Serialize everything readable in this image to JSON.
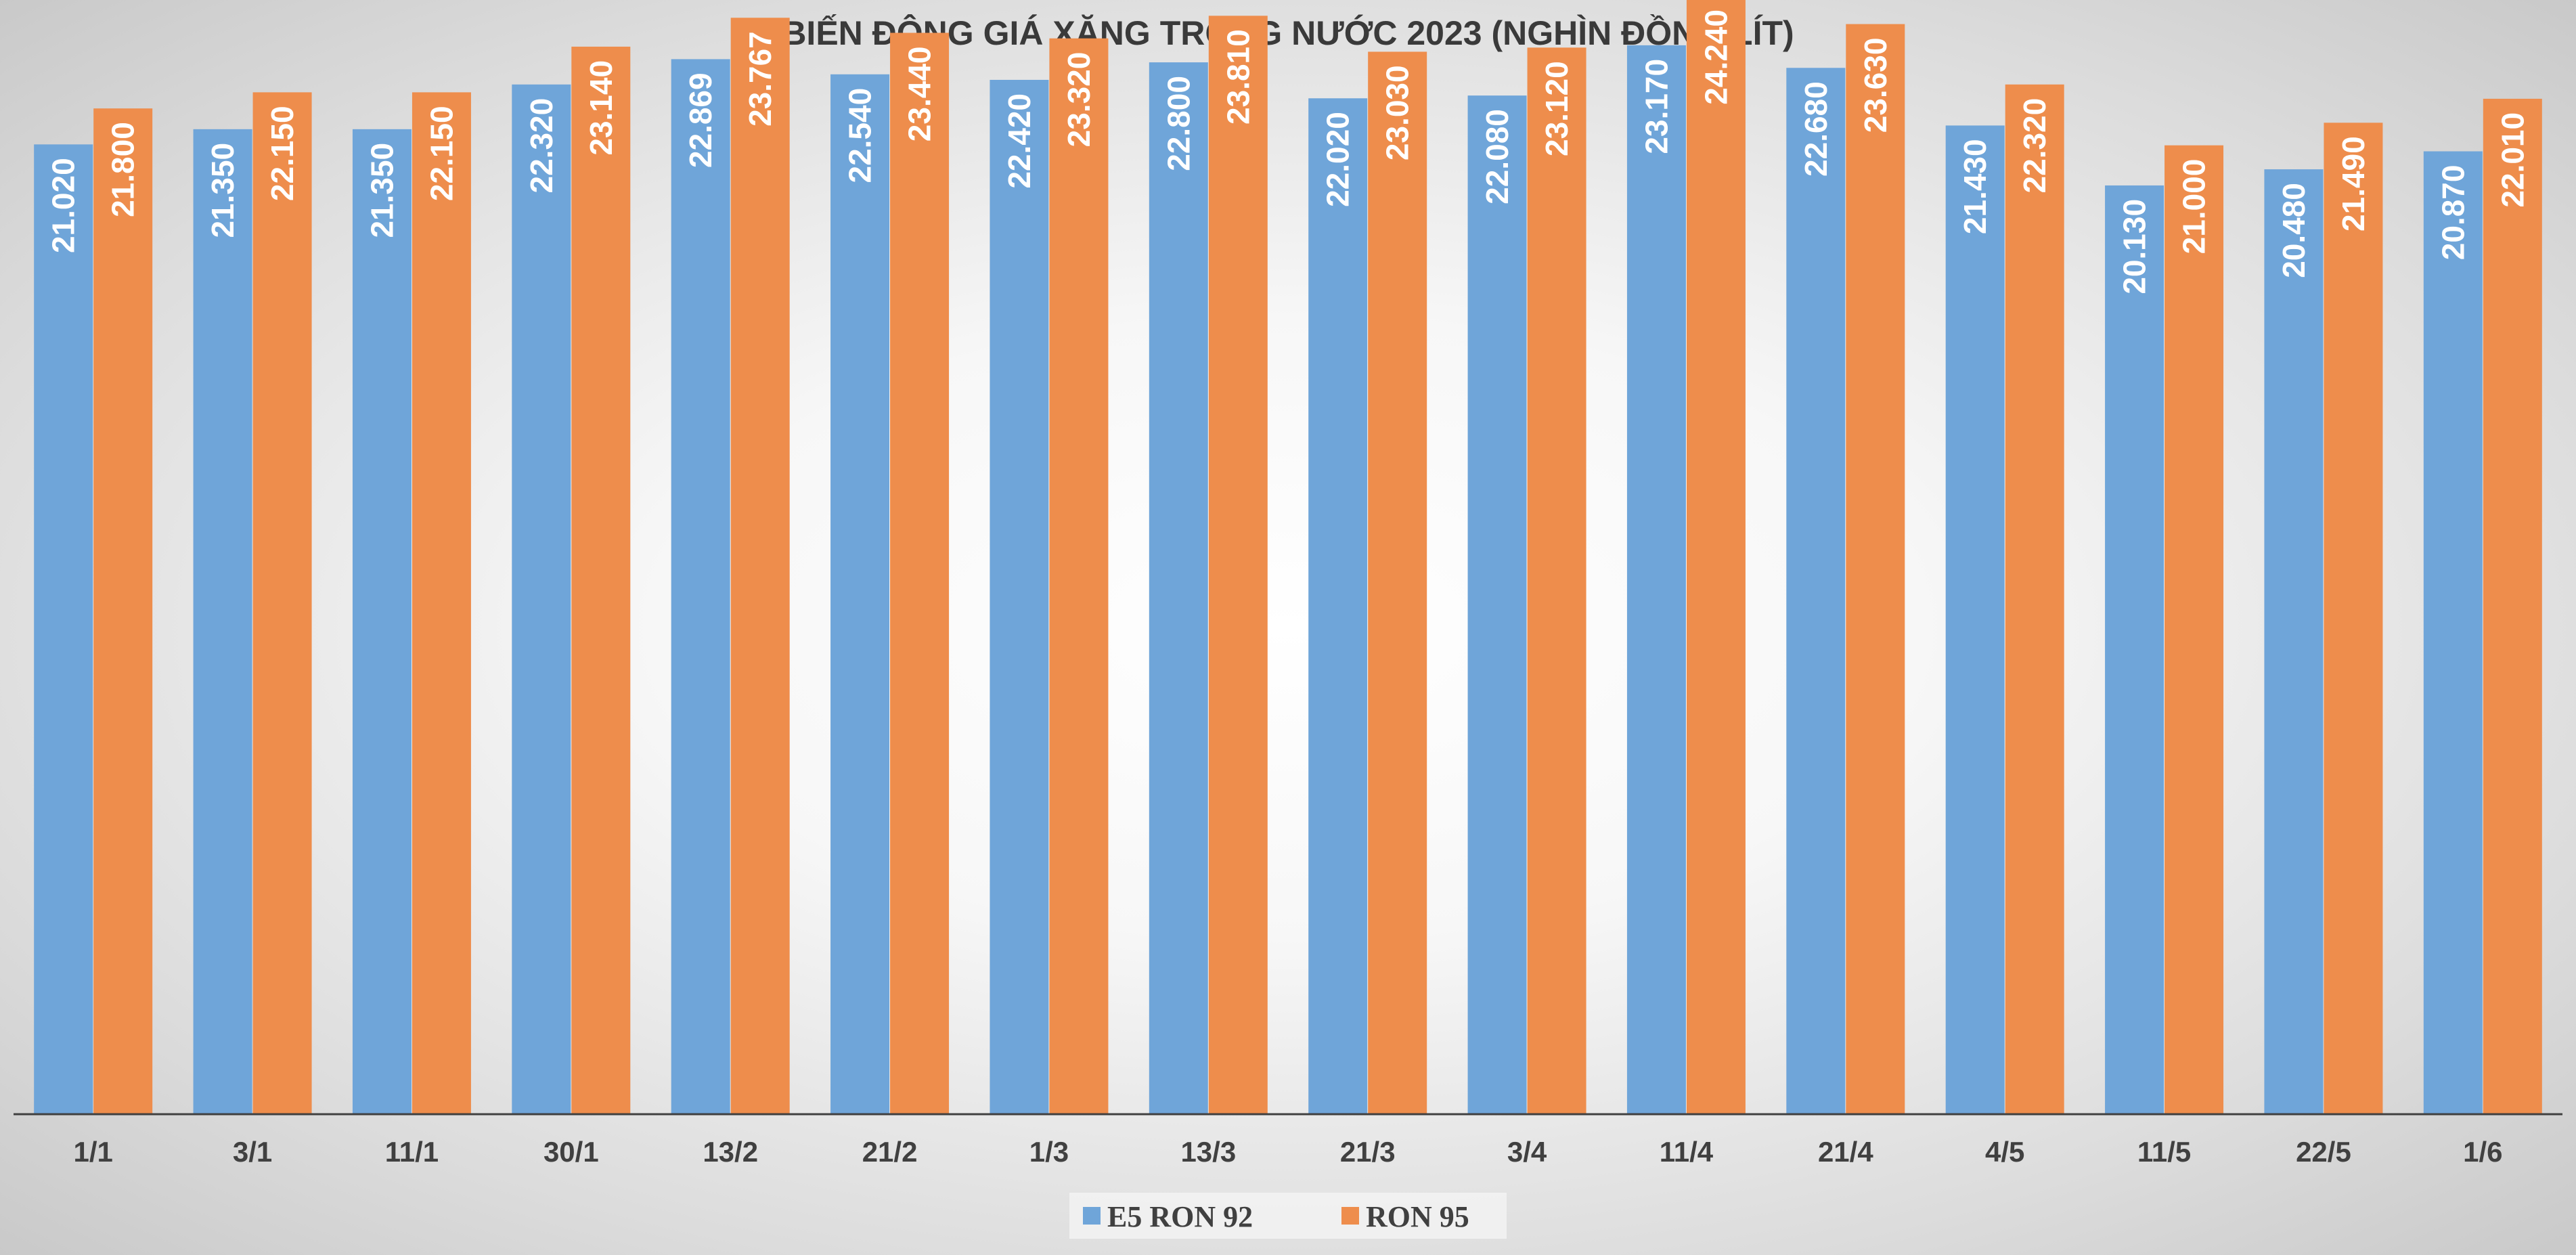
{
  "chart_data": {
    "type": "bar",
    "title": "BIẾN ĐỘNG GIÁ XĂNG TRONG NƯỚC 2023 (NGHÌN ĐỒNG/LÍT)",
    "xlabel": "",
    "ylabel": "",
    "categories": [
      "1/1",
      "3/1",
      "11/1",
      "30/1",
      "13/2",
      "21/2",
      "1/3",
      "13/3",
      "21/3",
      "3/4",
      "11/4",
      "21/4",
      "4/5",
      "11/5",
      "22/5",
      "1/6"
    ],
    "series": [
      {
        "name": "E5 RON 92",
        "color": "#6fa5d9",
        "values": [
          21.02,
          21.35,
          21.35,
          22.32,
          22.869,
          22.54,
          22.42,
          22.8,
          22.02,
          22.08,
          23.17,
          22.68,
          21.43,
          20.13,
          20.48,
          20.87
        ],
        "labels": [
          "21.020",
          "21.350",
          "21.350",
          "22.320",
          "22.869",
          "22.540",
          "22.420",
          "22.800",
          "22.020",
          "22.080",
          "23.170",
          "22.680",
          "21.430",
          "20.130",
          "20.480",
          "20.870"
        ]
      },
      {
        "name": "RON 95",
        "color": "#ee8d4c",
        "values": [
          21.8,
          22.15,
          22.15,
          23.14,
          23.767,
          23.44,
          23.32,
          23.81,
          23.03,
          23.12,
          24.24,
          23.63,
          22.32,
          21.0,
          21.49,
          22.01
        ],
        "labels": [
          "21.800",
          "22.150",
          "22.150",
          "23.140",
          "23.767",
          "23.440",
          "23.320",
          "23.810",
          "23.030",
          "23.120",
          "24.240",
          "23.630",
          "22.320",
          "21.000",
          "21.490",
          "22.010"
        ]
      }
    ],
    "ylim": [
      0,
      25
    ],
    "grid": false,
    "legend_position": "bottom-center",
    "data_label_orientation": "vertical"
  }
}
